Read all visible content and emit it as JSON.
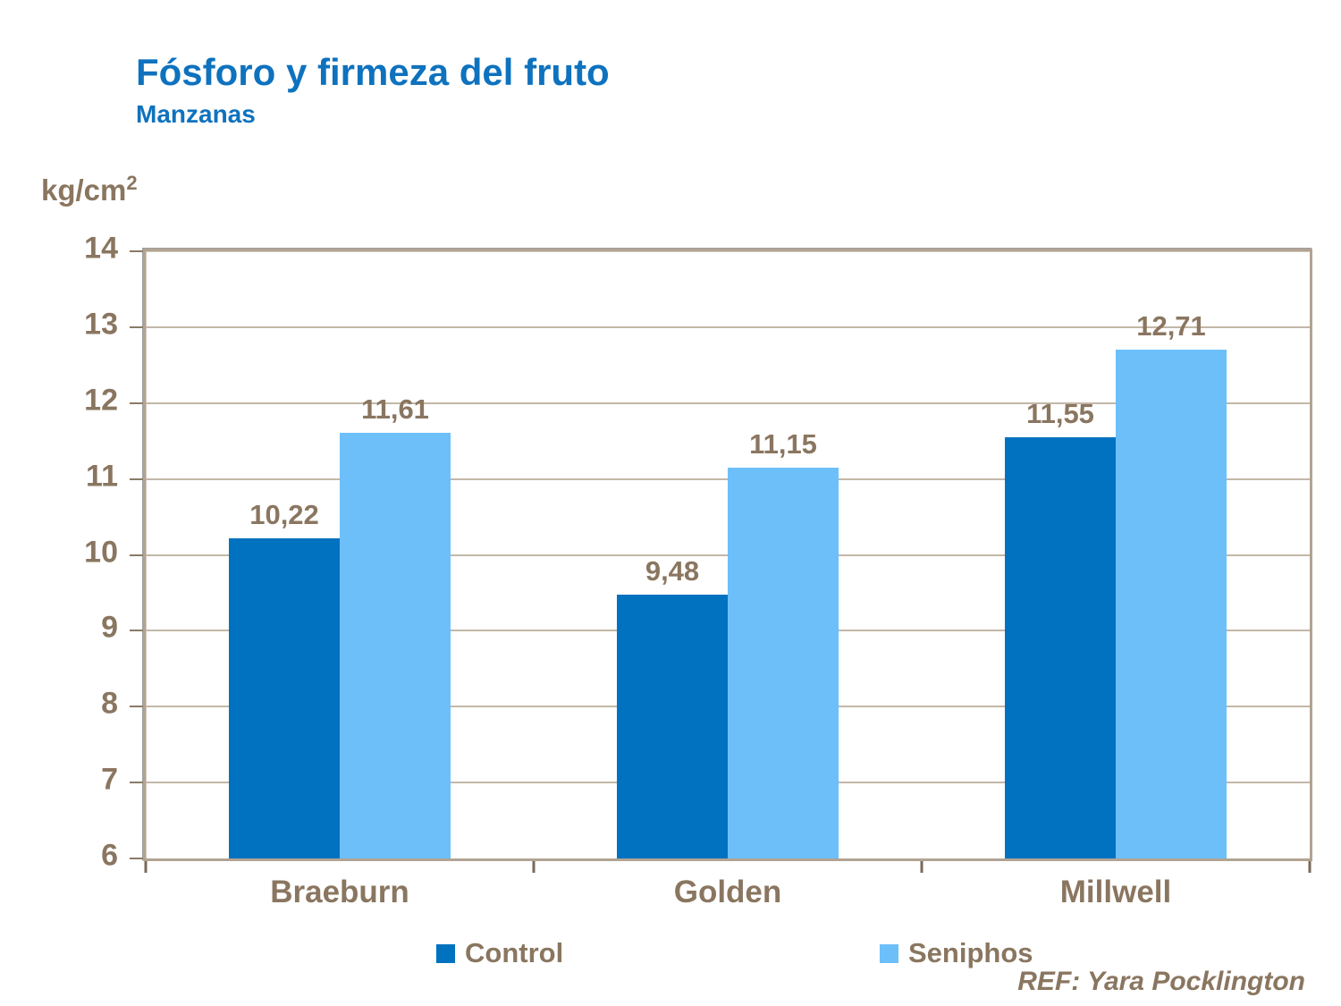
{
  "header": {
    "title": "Fósforo y firmeza del fruto",
    "subtitle": "Manzanas"
  },
  "axis_unit": {
    "base": "kg/cm",
    "superscript": "2"
  },
  "footer": {
    "ref": "REF: Yara Pocklington"
  },
  "colors": {
    "title_blue": "#0E72BE",
    "text_brown": "#8A7660",
    "gridline": "#C3B7A7",
    "axis_frame": "#B2A392",
    "control_bar": "#0072C0",
    "seniphos_bar": "#6DBFFA"
  },
  "chart_data": {
    "type": "bar",
    "title": "Fósforo y firmeza del fruto",
    "subtitle": "Manzanas",
    "ylabel": "kg/cm2",
    "categories": [
      "Braeburn",
      "Golden",
      "Millwell"
    ],
    "series": [
      {
        "name": "Control",
        "color": "#0072C0",
        "values": [
          10.22,
          9.48,
          11.55
        ],
        "labels": [
          "10,22",
          "9,48",
          "11,55"
        ]
      },
      {
        "name": "Seniphos",
        "color": "#6DBFFA",
        "values": [
          11.61,
          11.15,
          12.71
        ],
        "labels": [
          "11,61",
          "11,15",
          "12,71"
        ]
      }
    ],
    "ylim": [
      6,
      14
    ],
    "ytick_step": 1,
    "grid": true,
    "legend_position": "bottom"
  }
}
